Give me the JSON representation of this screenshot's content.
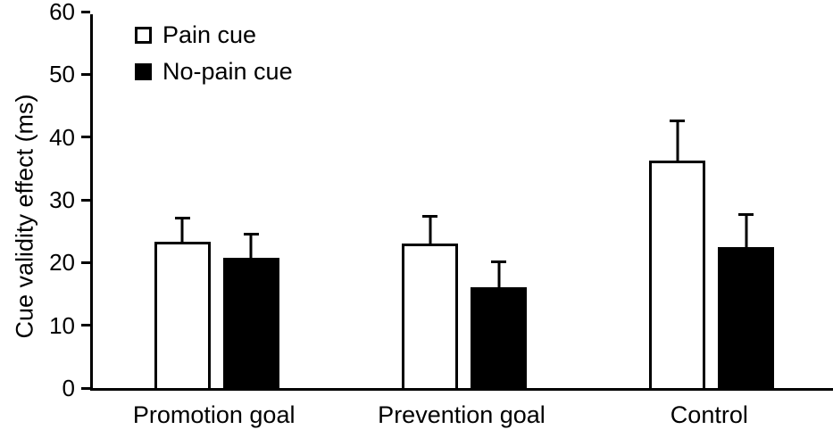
{
  "figure": {
    "background": "#ffffff",
    "axis_color": "#000000"
  },
  "chart_data": {
    "type": "bar",
    "title": "",
    "xlabel": "",
    "ylabel": "Cue validity effect (ms)",
    "ylim": [
      0,
      60
    ],
    "yticks": [
      0,
      10,
      20,
      30,
      40,
      50,
      60
    ],
    "grid": false,
    "legend_position": "top-left-inside",
    "categories": [
      "Promotion goal",
      "Prevention goal",
      "Control"
    ],
    "series": [
      {
        "name": "Pain cue",
        "fill": "#ffffff",
        "border": "#000000",
        "values": [
          23.3,
          23.0,
          36.3
        ],
        "errors": [
          4.0,
          4.6,
          6.5
        ],
        "error_direction": "upper-only"
      },
      {
        "name": "No-pain cue",
        "fill": "#000000",
        "border": "#000000",
        "values": [
          20.8,
          16.0,
          22.5
        ],
        "errors": [
          3.9,
          4.3,
          5.4
        ],
        "error_direction": "upper-only"
      }
    ]
  }
}
